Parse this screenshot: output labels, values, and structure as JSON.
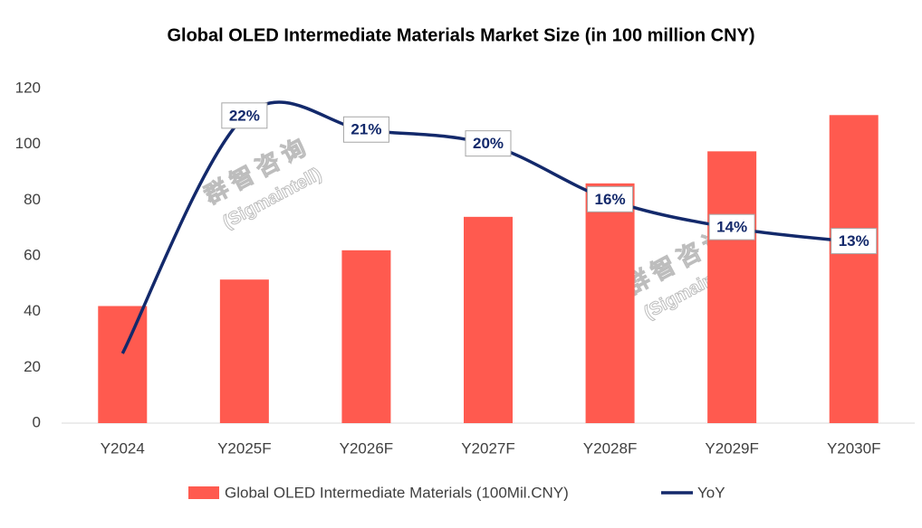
{
  "chart_data": {
    "type": "bar_line",
    "title": "Global OLED Intermediate Materials Market Size (in 100 million CNY)",
    "categories": [
      "Y2024",
      "Y2025F",
      "Y2026F",
      "Y2027F",
      "Y2028F",
      "Y2029F",
      "Y2030F"
    ],
    "series": [
      {
        "name": "Global OLED Intermediate Materials (100Mil.CNY)",
        "color": "#ff5a4f",
        "type": "bar",
        "values": [
          42,
          51.5,
          62,
          74,
          86,
          97.5,
          110.5
        ]
      },
      {
        "name": "YoY",
        "color": "#13296b",
        "type": "line",
        "axis": "y2",
        "values": [
          5,
          22,
          21,
          20,
          16,
          14,
          13
        ],
        "value_labels": [
          null,
          "22%",
          "21%",
          "20%",
          "16%",
          "14%",
          "13%"
        ]
      }
    ],
    "ylim": [
      0,
      120
    ],
    "yticks": [
      0,
      20,
      40,
      60,
      80,
      100,
      120
    ],
    "y2lim": [
      0,
      24
    ],
    "grid": false,
    "legend": "bottom",
    "watermark": [
      "群智咨询",
      "(Sigmaintell)"
    ]
  }
}
